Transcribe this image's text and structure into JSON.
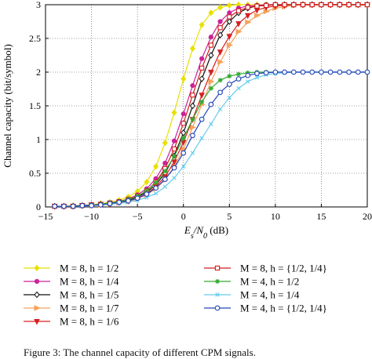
{
  "chart_data": {
    "type": "line",
    "xlabel": "E_s/N_0 (dB)",
    "ylabel": "Channel capacity (bit/symbol)",
    "xlim": [
      -15,
      20
    ],
    "ylim": [
      0,
      3
    ],
    "xticks": [
      "−15",
      "−10",
      "−5",
      "0",
      "5",
      "10",
      "15",
      "20"
    ],
    "yticks": [
      "0",
      "0.5",
      "1",
      "1.5",
      "2",
      "2.5",
      "3"
    ],
    "grid": true,
    "legend_position": "bottom, two columns",
    "x": [
      -14,
      -13,
      -12,
      -11,
      -10,
      -9,
      -8,
      -7,
      -6,
      -5,
      -4,
      -3,
      -2,
      -1,
      0,
      1,
      2,
      3,
      4,
      5,
      6,
      7,
      8,
      9,
      10,
      11,
      12,
      13,
      14,
      15,
      16,
      17,
      18,
      19,
      20
    ],
    "series": [
      {
        "name": "M = 8, h = 1/2",
        "color": "#e8e000",
        "marker": "diamond",
        "values": [
          0.01,
          0.01,
          0.02,
          0.02,
          0.03,
          0.05,
          0.07,
          0.1,
          0.15,
          0.23,
          0.37,
          0.6,
          0.95,
          1.4,
          1.9,
          2.35,
          2.7,
          2.88,
          2.96,
          2.99,
          3,
          3,
          3,
          3,
          3,
          3,
          3,
          3,
          3,
          3,
          3,
          3,
          3,
          3,
          3
        ]
      },
      {
        "name": "M = 8, h = 1/4",
        "color": "#cc2299",
        "marker": "circle",
        "values": [
          0.01,
          0.01,
          0.01,
          0.02,
          0.03,
          0.04,
          0.06,
          0.08,
          0.12,
          0.18,
          0.27,
          0.42,
          0.65,
          0.98,
          1.38,
          1.8,
          2.2,
          2.52,
          2.75,
          2.88,
          2.95,
          2.98,
          2.99,
          3,
          3,
          3,
          3,
          3,
          3,
          3,
          3,
          3,
          3,
          3,
          3
        ]
      },
      {
        "name": "M = 8, h = 1/5",
        "color": "#111111",
        "marker": "diamond-open",
        "values": [
          0.01,
          0.01,
          0.01,
          0.02,
          0.03,
          0.04,
          0.05,
          0.07,
          0.1,
          0.15,
          0.22,
          0.33,
          0.5,
          0.76,
          1.1,
          1.5,
          1.9,
          2.25,
          2.55,
          2.75,
          2.88,
          2.95,
          2.98,
          2.99,
          3,
          3,
          3,
          3,
          3,
          3,
          3,
          3,
          3,
          3,
          3
        ]
      },
      {
        "name": "M = 8, h = 1/7",
        "color": "#f5a25a",
        "marker": "triangle-right",
        "values": [
          0.01,
          0.01,
          0.01,
          0.02,
          0.02,
          0.03,
          0.04,
          0.06,
          0.08,
          0.12,
          0.18,
          0.27,
          0.4,
          0.6,
          0.86,
          1.18,
          1.52,
          1.86,
          2.15,
          2.4,
          2.6,
          2.74,
          2.84,
          2.9,
          2.95,
          2.97,
          2.99,
          3,
          3,
          3,
          3,
          3,
          3,
          3,
          3
        ]
      },
      {
        "name": "M = 8, h = 1/6",
        "color": "#d62020",
        "marker": "triangle-down",
        "values": [
          0.01,
          0.01,
          0.01,
          0.02,
          0.03,
          0.04,
          0.05,
          0.07,
          0.09,
          0.13,
          0.2,
          0.3,
          0.45,
          0.67,
          0.96,
          1.3,
          1.66,
          2,
          2.3,
          2.53,
          2.72,
          2.84,
          2.92,
          2.96,
          2.98,
          2.99,
          3,
          3,
          3,
          3,
          3,
          3,
          3,
          3,
          3
        ]
      },
      {
        "name": "M = 8, h = {1/2, 1/4}",
        "color": "#d01c1c",
        "marker": "square-open",
        "values": [
          0.01,
          0.01,
          0.01,
          0.02,
          0.03,
          0.04,
          0.06,
          0.08,
          0.11,
          0.16,
          0.24,
          0.37,
          0.57,
          0.86,
          1.24,
          1.66,
          2.06,
          2.4,
          2.66,
          2.82,
          2.91,
          2.96,
          2.98,
          2.99,
          3,
          3,
          3,
          3,
          3,
          3,
          3,
          3,
          3,
          3,
          3
        ]
      },
      {
        "name": "M = 4, h = 1/2",
        "color": "#33aa33",
        "marker": "star",
        "values": [
          0.01,
          0.01,
          0.01,
          0.02,
          0.03,
          0.04,
          0.06,
          0.08,
          0.11,
          0.16,
          0.24,
          0.36,
          0.53,
          0.75,
          1.02,
          1.3,
          1.56,
          1.76,
          1.88,
          1.94,
          1.97,
          1.99,
          2,
          2,
          2,
          2,
          2,
          2,
          2,
          2,
          2,
          2,
          2,
          2,
          2
        ]
      },
      {
        "name": "M = 4, h = 1/4",
        "color": "#66ccee",
        "marker": "x",
        "values": [
          0.01,
          0.01,
          0.01,
          0.01,
          0.02,
          0.03,
          0.04,
          0.05,
          0.07,
          0.1,
          0.14,
          0.2,
          0.3,
          0.43,
          0.6,
          0.8,
          1.02,
          1.23,
          1.45,
          1.62,
          1.76,
          1.86,
          1.92,
          1.96,
          1.98,
          1.99,
          2,
          2,
          2,
          2,
          2,
          2,
          2,
          2,
          2
        ]
      },
      {
        "name": "M = 4, h = {1/2, 1/4}",
        "color": "#2244bb",
        "marker": "circle-open",
        "values": [
          0.01,
          0.01,
          0.01,
          0.02,
          0.02,
          0.03,
          0.05,
          0.07,
          0.09,
          0.13,
          0.19,
          0.28,
          0.41,
          0.58,
          0.8,
          1.06,
          1.3,
          1.52,
          1.7,
          1.82,
          1.9,
          1.95,
          1.98,
          1.99,
          2,
          2,
          2,
          2,
          2,
          2,
          2,
          2,
          2,
          2,
          2
        ]
      }
    ]
  },
  "caption": "Figure 3: The channel capacity of different CPM signals."
}
